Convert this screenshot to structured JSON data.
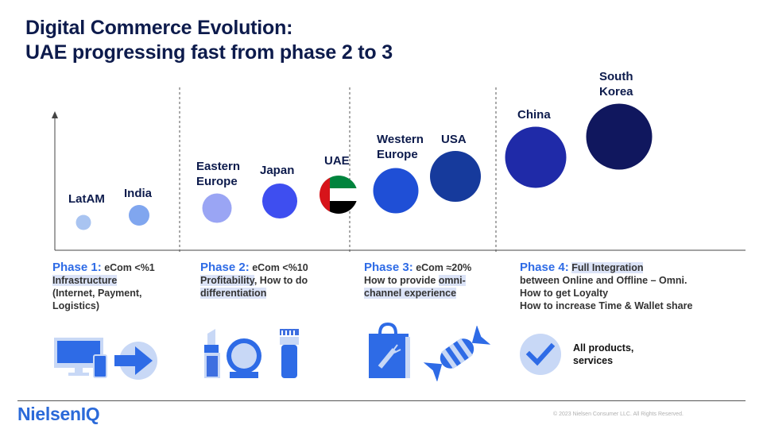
{
  "title": {
    "line1": "Digital Commerce Evolution:",
    "line2": "UAE progressing fast from phase 2 to 3"
  },
  "countries": [
    {
      "label_lines": [
        "LatAM"
      ],
      "color": "#a9c4f1"
    },
    {
      "label_lines": [
        "India"
      ],
      "color": "#80a6ef"
    },
    {
      "label_lines": [
        "Eastern",
        "Europe"
      ],
      "color": "#9aa5f4"
    },
    {
      "label_lines": [
        "Japan"
      ],
      "color": "#3e4ef0"
    },
    {
      "label_lines": [
        "UAE"
      ],
      "color": "flag"
    },
    {
      "label_lines": [
        "Western",
        "Europe"
      ],
      "color": "#1f4fd6"
    },
    {
      "label_lines": [
        "USA"
      ],
      "color": "#163a9c"
    },
    {
      "label_lines": [
        "China"
      ],
      "color": "#1f2aa8"
    },
    {
      "label_lines": [
        "South",
        "Korea"
      ],
      "color": "#10175e"
    }
  ],
  "phases": [
    {
      "title": "Phase 1:",
      "metric": "eCom <%1",
      "lines": [
        "Infrastructure",
        "(Internet, Payment,",
        "Logistics)"
      ]
    },
    {
      "title": "Phase 2:",
      "metric": "eCom <%10",
      "line1_hl": "Profitability",
      "line1_rest": ", How to do",
      "line2_hl": "differentiation"
    },
    {
      "title": "Phase 3:",
      "metric": "eCom ≈20%",
      "line1_rest": "How to provide ",
      "line1_hl": "omni-",
      "line2_hl": "channel experience"
    },
    {
      "title": "Phase 4:",
      "metric": "Full Integration",
      "lines": [
        "between Online and Offline – Omni.",
        "How to get Loyalty",
        "How to increase Time & Wallet share"
      ]
    }
  ],
  "icons": [
    "computer-icon",
    "arrow-right-icon",
    "lipstick-icon",
    "mirror-icon",
    "trimmer-icon",
    "shopping-bag-icon",
    "candy-icon",
    "checkmark-icon"
  ],
  "all_products": {
    "line1": "All products,",
    "line2": "services"
  },
  "footer": {
    "logo": "NielsenIQ",
    "copyright": "© 2023 Nielsen Consumer LLC. All Rights Reserved."
  },
  "colors": {
    "title": "#0d1b4c",
    "phase_title": "#2e6be6",
    "highlight": "#dbe3f7",
    "logo": "#2b6ad9",
    "icon_light": "#c8d8f6",
    "icon_mid": "#3e6fe0"
  }
}
